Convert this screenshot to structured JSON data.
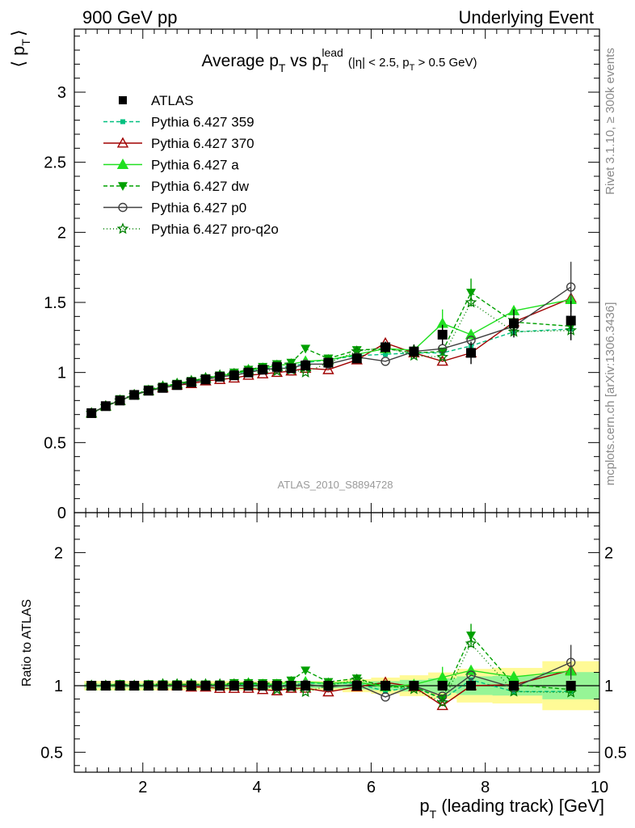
{
  "header": {
    "left": "900 GeV pp",
    "right": "Underlying Event"
  },
  "side": {
    "rivet": "Rivet 3.1.10, ≥ 300k events",
    "mcplots": "mcplots.cern.ch [arXiv:1306.3436]"
  },
  "watermark": "ATLAS_2010_S8894728",
  "chart_data": {
    "type": "scatter",
    "title_main": "Average p",
    "title_sub1": "T",
    "title_mid": " vs p",
    "title_sub2": "T",
    "title_sup": "lead",
    "title_cond": "(|η| < 2.5, p",
    "title_cond_sub": "T",
    "title_cond_end": " > 0.5 GeV)",
    "ylabel_open": "⟨ p",
    "ylabel_sub": "T",
    "ylabel_close": "⟩",
    "xlabel": "p",
    "xlabel_sub": "T",
    "xlabel_rest": " (leading track) [GeV]",
    "ratio_ylabel": "Ratio to ATLAS",
    "xlim": [
      0.8,
      10.0
    ],
    "ylim": [
      0,
      3.45
    ],
    "ratio_ylim": [
      0.35,
      2.3
    ],
    "xticks": [
      2,
      4,
      6,
      8,
      10
    ],
    "yticks": [
      0,
      0.5,
      1,
      1.5,
      2,
      2.5,
      3
    ],
    "ratio_yticks": [
      0.5,
      1,
      2
    ],
    "x": [
      1.1,
      1.35,
      1.6,
      1.85,
      2.1,
      2.35,
      2.6,
      2.85,
      3.1,
      3.35,
      3.6,
      3.85,
      4.1,
      4.35,
      4.6,
      4.85,
      5.25,
      5.75,
      6.25,
      6.75,
      7.25,
      7.75,
      8.5,
      9.5
    ],
    "series": [
      {
        "name": "ATLAS",
        "color": "#000000",
        "marker": "square",
        "dash": "none",
        "line": false,
        "values": [
          0.71,
          0.76,
          0.8,
          0.84,
          0.87,
          0.89,
          0.91,
          0.93,
          0.95,
          0.97,
          0.98,
          1.0,
          1.02,
          1.04,
          1.03,
          1.05,
          1.07,
          1.1,
          1.18,
          1.15,
          1.27,
          1.14,
          1.35,
          1.37
        ],
        "errors": [
          0.01,
          0.01,
          0.01,
          0.01,
          0.01,
          0.01,
          0.01,
          0.01,
          0.01,
          0.01,
          0.01,
          0.01,
          0.02,
          0.02,
          0.02,
          0.02,
          0.02,
          0.03,
          0.04,
          0.05,
          0.07,
          0.08,
          0.1,
          0.14
        ]
      },
      {
        "name": "Pythia 6.427 359",
        "color": "#00c080",
        "marker": "square-small",
        "dash": "5,3",
        "line": true,
        "values": [
          0.71,
          0.76,
          0.8,
          0.84,
          0.87,
          0.89,
          0.92,
          0.93,
          0.96,
          0.97,
          0.99,
          1.01,
          1.02,
          1.04,
          1.04,
          1.07,
          1.09,
          1.12,
          1.13,
          1.14,
          1.14,
          1.19,
          1.29,
          1.31
        ]
      },
      {
        "name": "Pythia 6.427 370",
        "color": "#a00000",
        "marker": "triangle-open",
        "dash": "none",
        "line": true,
        "values": [
          0.71,
          0.76,
          0.8,
          0.84,
          0.87,
          0.89,
          0.91,
          0.92,
          0.94,
          0.95,
          0.96,
          0.98,
          0.99,
          1.0,
          1.01,
          1.03,
          1.02,
          1.09,
          1.21,
          1.14,
          1.08,
          1.14,
          1.36,
          1.53
        ]
      },
      {
        "name": "Pythia 6.427 a",
        "color": "#20e020",
        "marker": "triangle",
        "dash": "none",
        "line": true,
        "values": [
          0.71,
          0.76,
          0.8,
          0.84,
          0.87,
          0.9,
          0.92,
          0.94,
          0.96,
          0.98,
          0.99,
          1.02,
          1.03,
          1.05,
          1.06,
          1.08,
          1.09,
          1.13,
          1.17,
          1.16,
          1.35,
          1.27,
          1.44,
          1.52
        ]
      },
      {
        "name": "Pythia 6.427 dw",
        "color": "#00a000",
        "marker": "triangle-down",
        "dash": "5,3",
        "line": true,
        "values": [
          0.71,
          0.76,
          0.81,
          0.84,
          0.88,
          0.9,
          0.92,
          0.94,
          0.96,
          0.98,
          1.0,
          1.02,
          1.04,
          1.06,
          1.07,
          1.17,
          1.1,
          1.16,
          1.17,
          1.14,
          1.15,
          1.57,
          1.36,
          1.33
        ]
      },
      {
        "name": "Pythia 6.427 p0",
        "color": "#404040",
        "marker": "circle-open",
        "dash": "none",
        "line": true,
        "values": [
          0.71,
          0.76,
          0.8,
          0.84,
          0.87,
          0.89,
          0.91,
          0.93,
          0.95,
          0.97,
          0.98,
          1.0,
          1.02,
          1.03,
          1.03,
          1.06,
          1.06,
          1.11,
          1.08,
          1.15,
          1.17,
          1.23,
          1.33,
          1.61
        ]
      },
      {
        "name": "Pythia 6.427 pro-q2o",
        "color": "#008000",
        "marker": "star",
        "dash": "1,3",
        "line": true,
        "values": [
          0.71,
          0.76,
          0.8,
          0.84,
          0.87,
          0.9,
          0.92,
          0.94,
          0.96,
          0.98,
          0.99,
          1.01,
          1.02,
          1.01,
          1.02,
          1.0,
          1.07,
          1.15,
          1.18,
          1.12,
          1.11,
          1.5,
          1.29,
          1.3
        ]
      }
    ],
    "mc_errors": {
      "Pythia 6.427 a": [
        7.25,
        0.1
      ],
      "Pythia 6.427 dw": [
        7.75,
        0.1
      ],
      "Pythia 6.427 p0": [
        9.5,
        0.18
      ]
    }
  }
}
